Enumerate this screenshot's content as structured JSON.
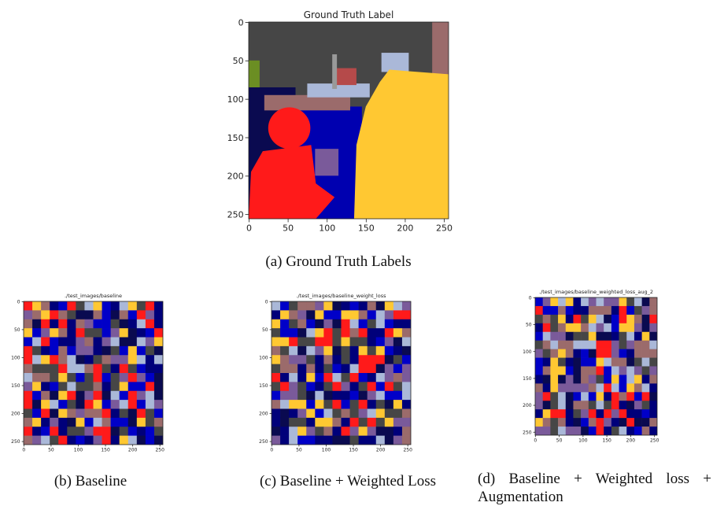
{
  "panels": [
    {
      "title": "Ground Truth Label",
      "xticks": [
        0,
        50,
        100,
        150,
        200,
        250
      ],
      "yticks": [
        0,
        50,
        100,
        150,
        200,
        250
      ],
      "caption": "(a) Ground Truth Labels"
    },
    {
      "title": "./test_images/baseline",
      "xticks": [
        0,
        50,
        100,
        150,
        200,
        250
      ],
      "yticks": [
        0,
        50,
        100,
        150,
        200,
        250
      ],
      "caption": "(b) Baseline"
    },
    {
      "title": "./test_images/baseline_weight_loss",
      "xticks": [
        0,
        50,
        100,
        150,
        200,
        250
      ],
      "yticks": [
        0,
        50,
        100,
        150,
        200,
        250
      ],
      "caption": "(c) Baseline + Weighted Loss"
    },
    {
      "title": "./test_images/baseline_weighted_loss_aug_2",
      "xticks": [
        0,
        50,
        100,
        150,
        200,
        250
      ],
      "yticks": [
        0,
        50,
        100,
        150,
        200,
        250
      ],
      "caption": "(d) Baseline + Weighted loss + Augmentation"
    }
  ]
}
